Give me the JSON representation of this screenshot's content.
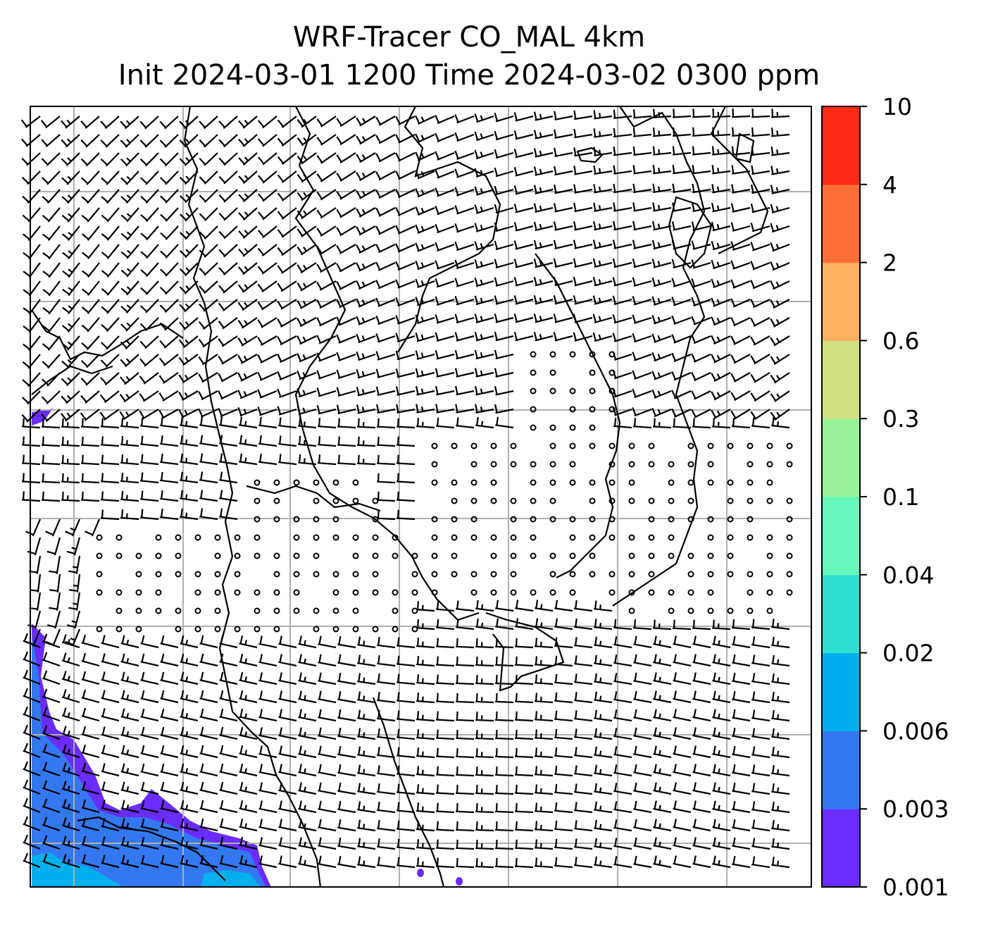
{
  "title": {
    "line1": "WRF-Tracer CO_MAL 4km",
    "line2": "Init 2024-03-01 1200 Time 2024-03-02 0300 ppm"
  },
  "colorbar": {
    "levels": [
      "0.001",
      "0.003",
      "0.006",
      "0.02",
      "0.04",
      "0.1",
      "0.3",
      "0.6",
      "2",
      "4",
      "10"
    ],
    "colors": [
      "#6a2cff",
      "#3378f0",
      "#00b0ec",
      "#2ee0d2",
      "#66f8bc",
      "#98f298",
      "#d2e084",
      "#ffb060",
      "#ff7038",
      "#ff2a14"
    ]
  },
  "map": {
    "field": "CO_MAL tracer concentration",
    "units": "ppm",
    "background_color": "#ffffff",
    "coastline_color": "#000000",
    "gridline_color": "#b0b0b0",
    "barb_color": "#000000",
    "plume_levels_present": [
      "0.001",
      "0.003",
      "0.006"
    ],
    "plume_location": "bottom-left",
    "overlays": [
      "coastlines",
      "gridlines",
      "wind-barbs",
      "calm-circles"
    ]
  }
}
